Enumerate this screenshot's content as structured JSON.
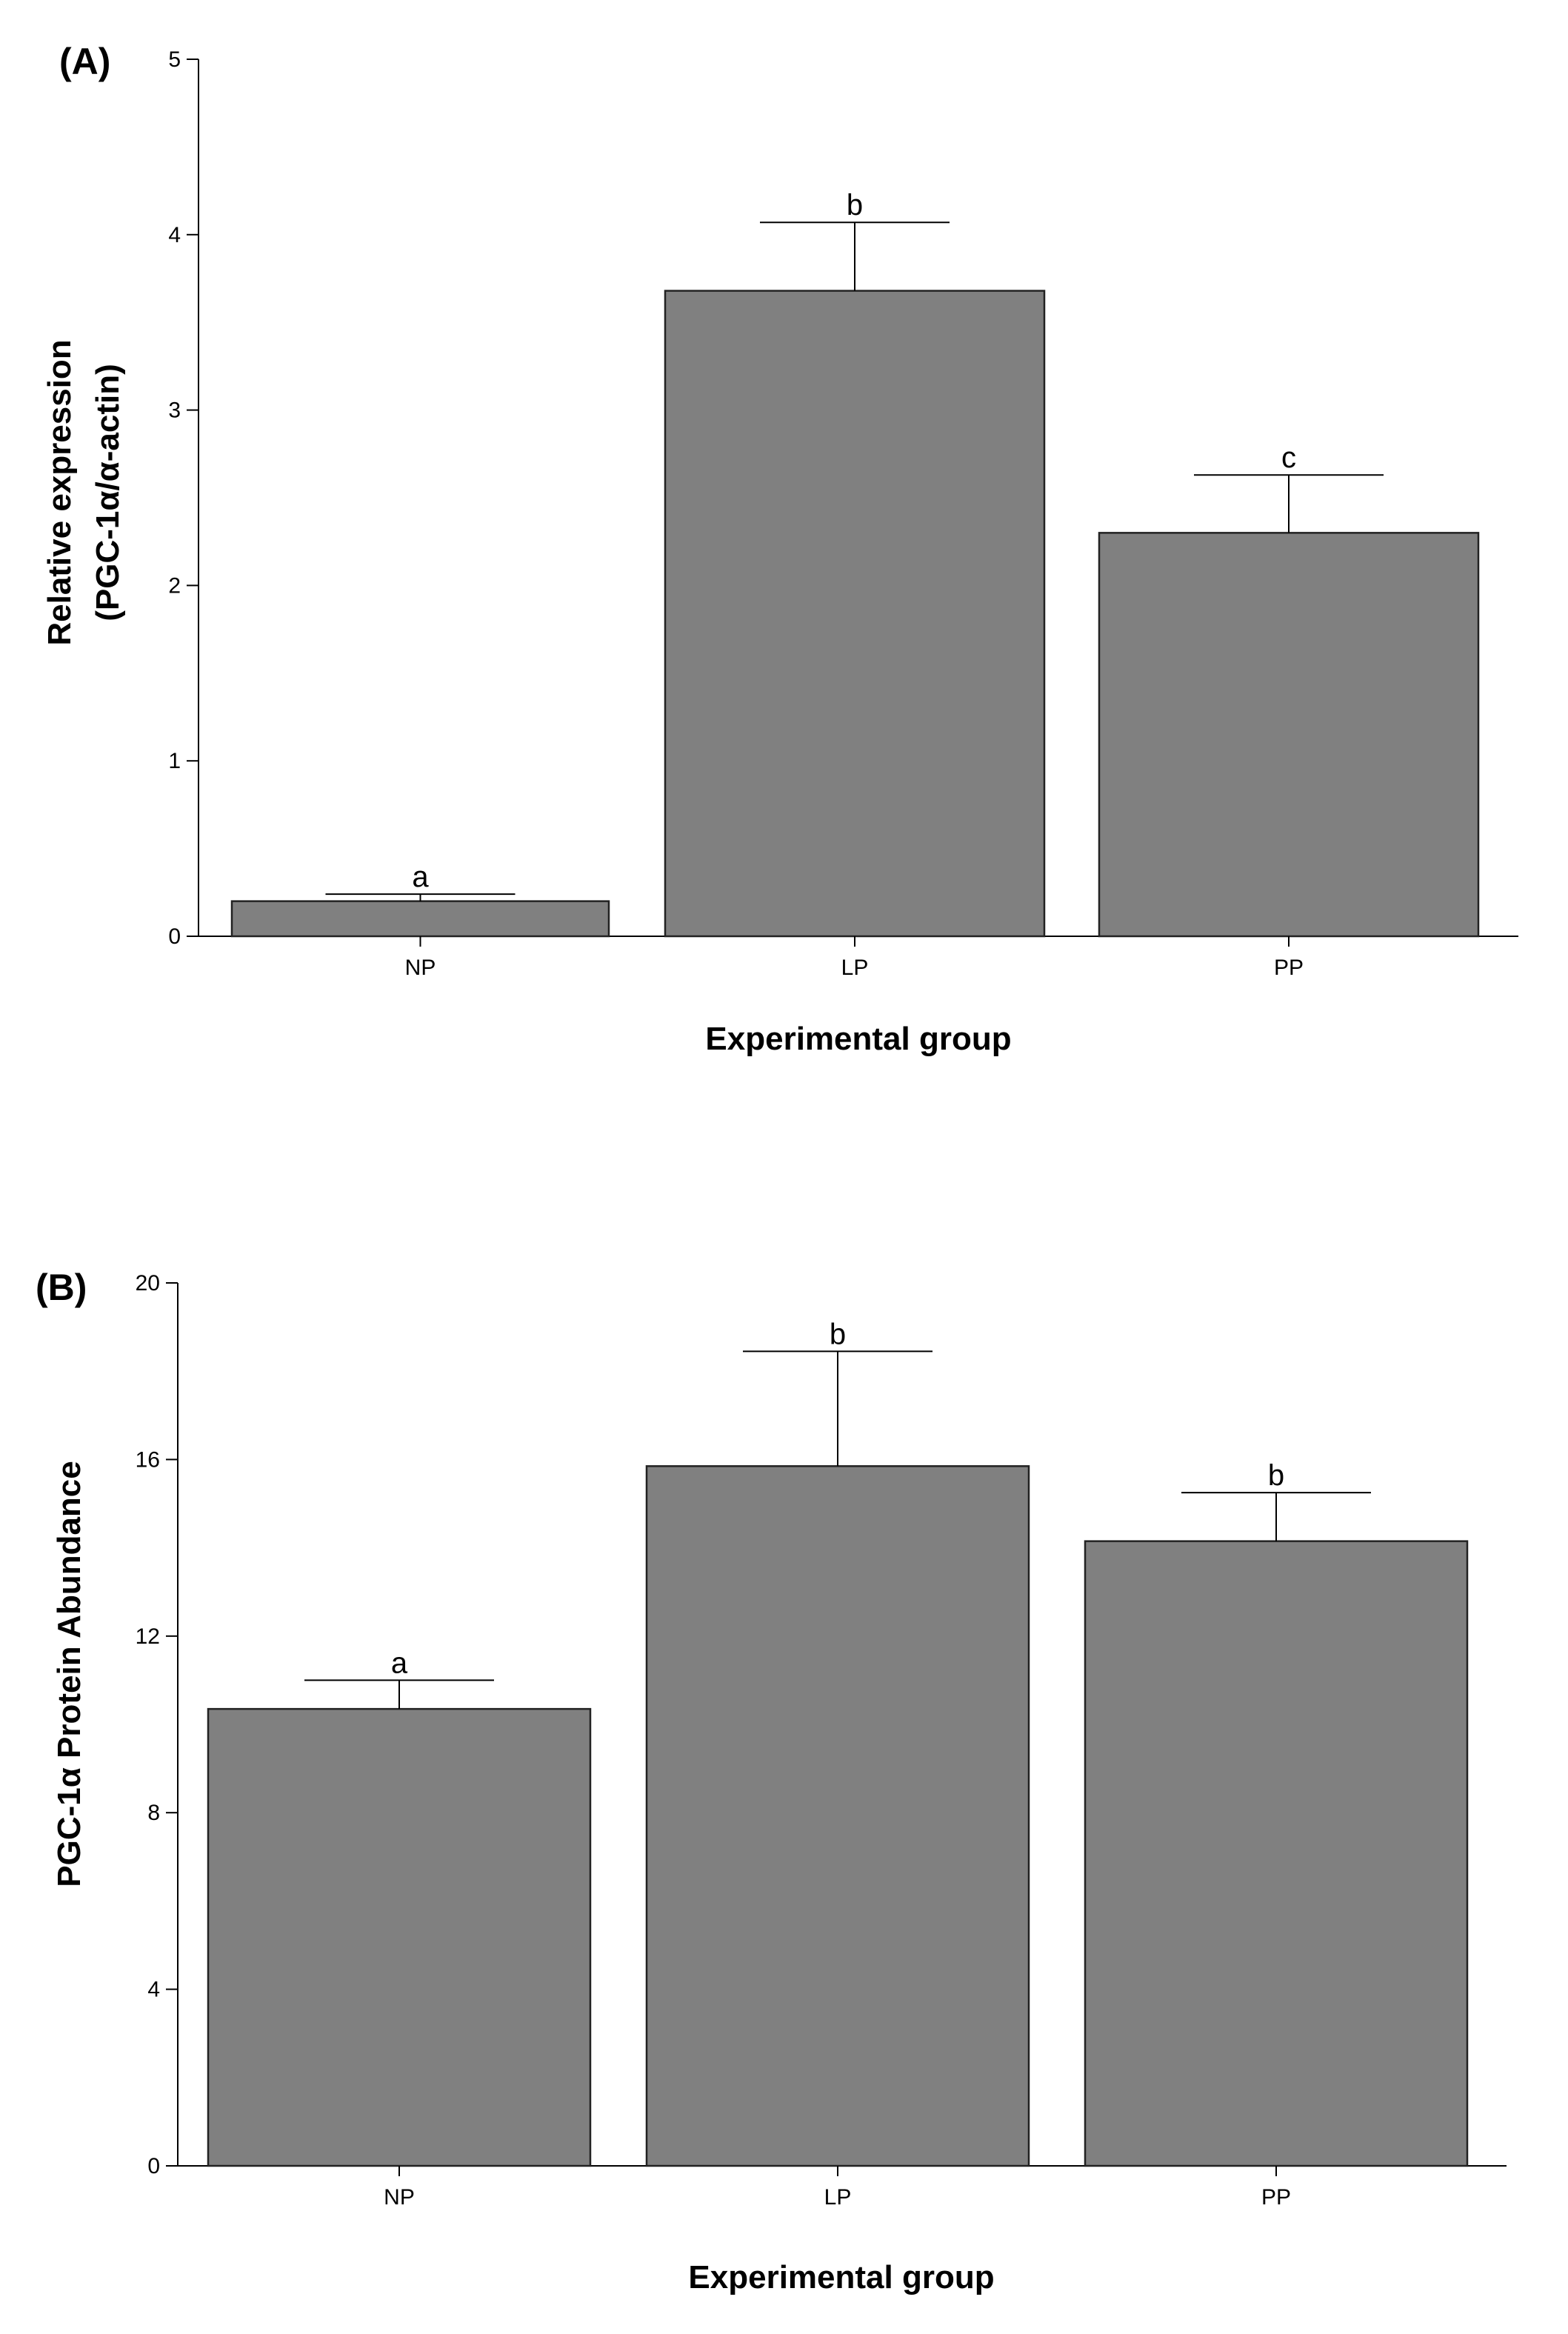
{
  "colors": {
    "bar_fill": "#808080",
    "bar_stroke": "#222222",
    "axis": "#000000"
  },
  "chart_data": [
    {
      "type": "bar",
      "panel_label": "(A)",
      "categories": [
        "NP",
        "LP",
        "PP"
      ],
      "values": [
        0.2,
        3.68,
        2.3
      ],
      "errors": [
        0.04,
        0.39,
        0.33
      ],
      "significance_letters": [
        "a",
        "b",
        "c"
      ],
      "xlabel": "Experimental group",
      "ylabel_line1": "Relative expression",
      "ylabel_line2": "(PGC-1α/α-actin)",
      "ylim": [
        0,
        5
      ],
      "yticks": [
        0,
        1,
        2,
        3,
        4,
        5
      ],
      "grid": false
    },
    {
      "type": "bar",
      "panel_label": "(B)",
      "categories": [
        "NP",
        "LP",
        "PP"
      ],
      "values": [
        10.35,
        15.85,
        14.15
      ],
      "errors": [
        0.65,
        2.6,
        1.1
      ],
      "significance_letters": [
        "a",
        "b",
        "b"
      ],
      "xlabel": "Experimental group",
      "ylabel": "PGC-1α Protein Abundance",
      "ylim": [
        0,
        20
      ],
      "yticks": [
        0,
        4,
        8,
        12,
        16,
        20
      ],
      "grid": false
    }
  ]
}
